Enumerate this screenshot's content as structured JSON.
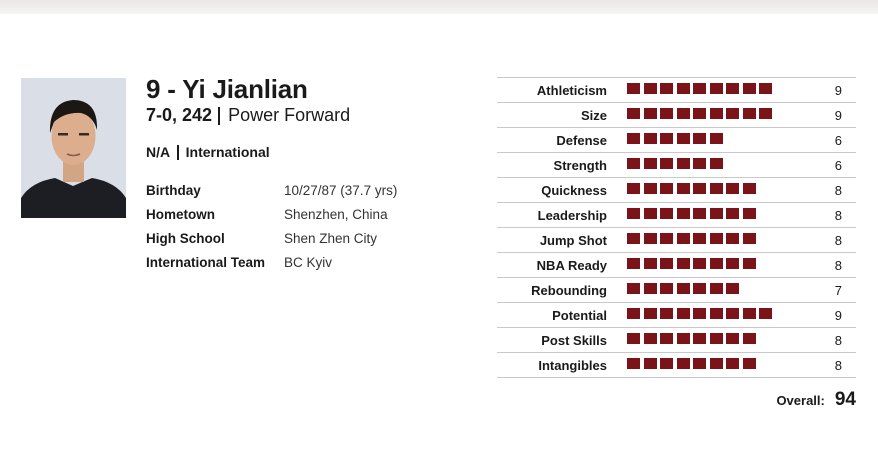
{
  "player": {
    "number_name": "9 - Yi Jianlian",
    "height_weight": "7-0, 242",
    "position": "Power Forward",
    "college": "N/A",
    "origin": "International"
  },
  "bio": [
    {
      "label": "Birthday",
      "value": "10/27/87 (37.7 yrs)"
    },
    {
      "label": "Hometown",
      "value": "Shenzhen, China"
    },
    {
      "label": "High School",
      "value": "Shen Zhen City"
    },
    {
      "label": "International Team",
      "value": "BC Kyiv"
    }
  ],
  "ratings": [
    {
      "label": "Athleticism",
      "value": 9
    },
    {
      "label": "Size",
      "value": 9
    },
    {
      "label": "Defense",
      "value": 6
    },
    {
      "label": "Strength",
      "value": 6
    },
    {
      "label": "Quickness",
      "value": 8
    },
    {
      "label": "Leadership",
      "value": 8
    },
    {
      "label": "Jump Shot",
      "value": 8
    },
    {
      "label": "NBA Ready",
      "value": 8
    },
    {
      "label": "Rebounding",
      "value": 7
    },
    {
      "label": "Potential",
      "value": 9
    },
    {
      "label": "Post Skills",
      "value": 8
    },
    {
      "label": "Intangibles",
      "value": 8
    }
  ],
  "overall": {
    "label": "Overall:",
    "value": "94"
  },
  "colors": {
    "bar": "#7b1418"
  }
}
